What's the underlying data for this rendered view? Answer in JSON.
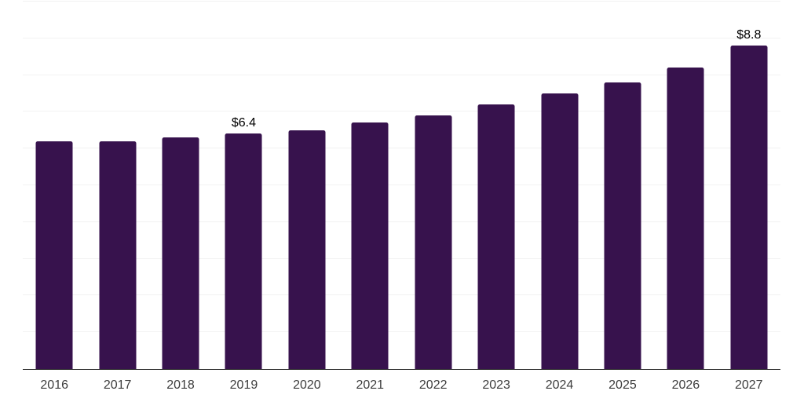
{
  "chart_data": {
    "type": "bar",
    "categories": [
      "2016",
      "2017",
      "2018",
      "2019",
      "2020",
      "2021",
      "2022",
      "2023",
      "2024",
      "2025",
      "2026",
      "2027"
    ],
    "values": [
      6.2,
      6.2,
      6.3,
      6.4,
      6.5,
      6.7,
      6.9,
      7.2,
      7.5,
      7.8,
      8.2,
      8.8
    ],
    "data_labels": {
      "2019": "$6.4",
      "2027": "$8.8"
    },
    "y_axis": {
      "min": 0,
      "max": 10,
      "tick_interval": 1,
      "labels_visible": false
    },
    "legend": "none",
    "grid": "horizontal"
  },
  "style": {
    "bar_color": "#37124d",
    "gridline_color": "#f2f2f2",
    "axis_line_color": "#262626",
    "tick_label_color": "#3c3c3c",
    "data_label_color": "#000000",
    "background": "#ffffff"
  }
}
